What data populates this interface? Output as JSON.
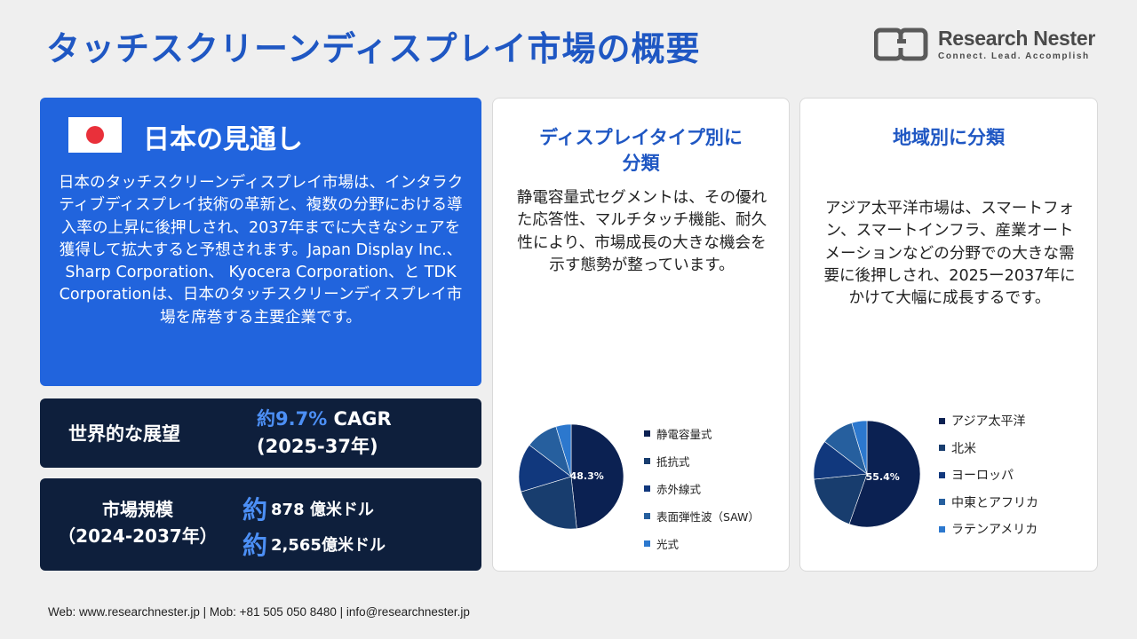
{
  "header": {
    "title": "タッチスクリーンディスプレイ市場の概要",
    "logo_name": "Research Nester",
    "logo_tagline": "Connect. Lead. Accomplish"
  },
  "japan": {
    "title": "日本の見通し",
    "body": "日本のタッチスクリーンディスプレイ市場は、インタラクティブディスプレイ技術の革新と、複数の分野における導入率の上昇に後押しされ、2037年までに大きなシェアを獲得して拡大すると予想されます。Japan Display Inc.、 Sharp Corporation、 Kyocera Corporation、と TDK Corporationは、日本のタッチスクリーンディスプレイ市場を席巻する主要企業です。"
  },
  "outlook": {
    "label": "世界的な展望",
    "prefix": "約",
    "cagr": "9.7%",
    "cagr_suffix": " CAGR",
    "period": "(2025-37年)"
  },
  "market_size": {
    "label_line1": "市場規模",
    "label_line2": "（2024-2037年）",
    "prefix": "約",
    "value_2024": "878 億米ドル",
    "value_2037": "2,565億米ドル"
  },
  "display_segment": {
    "title_line1": "ディスプレイタイプ別に",
    "title_line2": "分類",
    "text": "静電容量式セグメントは、その優れた応答性、マルチタッチ機能、耐久性により、市場成長の大きな機会を示す態勢が整っています。"
  },
  "region_segment": {
    "title": "地域別に分類",
    "text": "アジア太平洋市場は、スマートフォン、スマートインフラ、産業オートメーションなどの分野での大きな需要に後押しされ、2025ー2037年にかけて大幅に成長するです。"
  },
  "chart_data": [
    {
      "type": "pie",
      "title": "",
      "categories": [
        "静電容量式",
        "抵抗式",
        "赤外線式",
        "表面弾性波（SAW）",
        "光式"
      ],
      "values": [
        48.3,
        22.0,
        15.0,
        10.0,
        4.7
      ],
      "data_labels": [
        "48.3%",
        "",
        "",
        "",
        ""
      ],
      "colors": [
        "#0b2152",
        "#183d6e",
        "#11387d",
        "#265f9e",
        "#2c78ce"
      ],
      "legend_position": "right"
    },
    {
      "type": "pie",
      "title": "",
      "categories": [
        "アジア太平洋",
        "北米",
        "ヨーロッパ",
        "中東とアフリカ",
        "ラテンアメリカ"
      ],
      "values": [
        55.4,
        18.0,
        12.0,
        10.0,
        4.6
      ],
      "data_labels": [
        "55.4%",
        "",
        "",
        "",
        ""
      ],
      "colors": [
        "#0b2152",
        "#183d6e",
        "#11387d",
        "#265f9e",
        "#2c78ce"
      ],
      "legend_position": "right"
    }
  ],
  "footer": {
    "text": "Web: www.researchnester.jp   | Mob: +81 505 050 8480 | info@researchnester.jp"
  }
}
